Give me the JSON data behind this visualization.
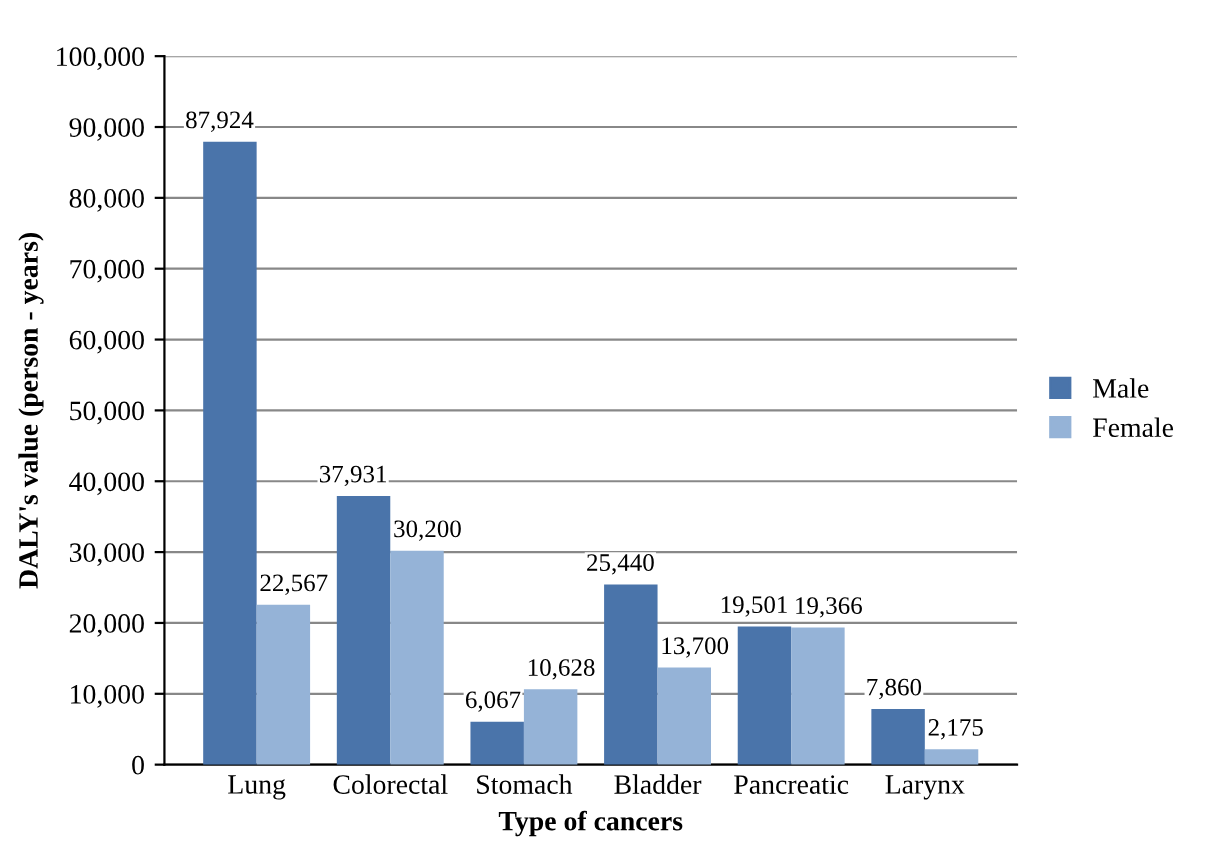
{
  "chart_data": {
    "type": "bar",
    "xlabel": "Type of cancers",
    "ylabel": "DALY's value (person - years)",
    "categories": [
      "Lung",
      "Colorectal",
      "Stomach",
      "Bladder",
      "Pancreatic",
      "Larynx"
    ],
    "series": [
      {
        "name": "Male",
        "color": "#4a74aa",
        "values": [
          87924,
          37931,
          6067,
          25440,
          19501,
          7860
        ],
        "value_labels": [
          "87,924",
          "37,931",
          "6,067",
          "25,440",
          "19,501",
          "7,860"
        ]
      },
      {
        "name": "Female",
        "color": "#95b3d7",
        "values": [
          22567,
          30200,
          10628,
          13700,
          19366,
          2175
        ],
        "value_labels": [
          "22,567",
          "30,200",
          "10,628",
          "13,700",
          "19,366",
          "2,175"
        ]
      }
    ],
    "ylim": [
      0,
      100000
    ],
    "yticks": [
      0,
      {
        "value": 10000,
        "label": "10,000"
      },
      {
        "value": 20000,
        "label": "20,000"
      },
      {
        "value": 30000,
        "label": "30,000"
      },
      {
        "value": 40000,
        "label": "40,000"
      },
      {
        "value": 50000,
        "label": "50,000"
      },
      {
        "value": 60000,
        "label": "60,000"
      },
      {
        "value": 70000,
        "label": "70,000"
      },
      {
        "value": 80000,
        "label": "80,000"
      },
      {
        "value": 90000,
        "label": "90,000"
      },
      {
        "value": 100000,
        "label": "100,000"
      }
    ],
    "grid": "y",
    "legend": "right"
  }
}
